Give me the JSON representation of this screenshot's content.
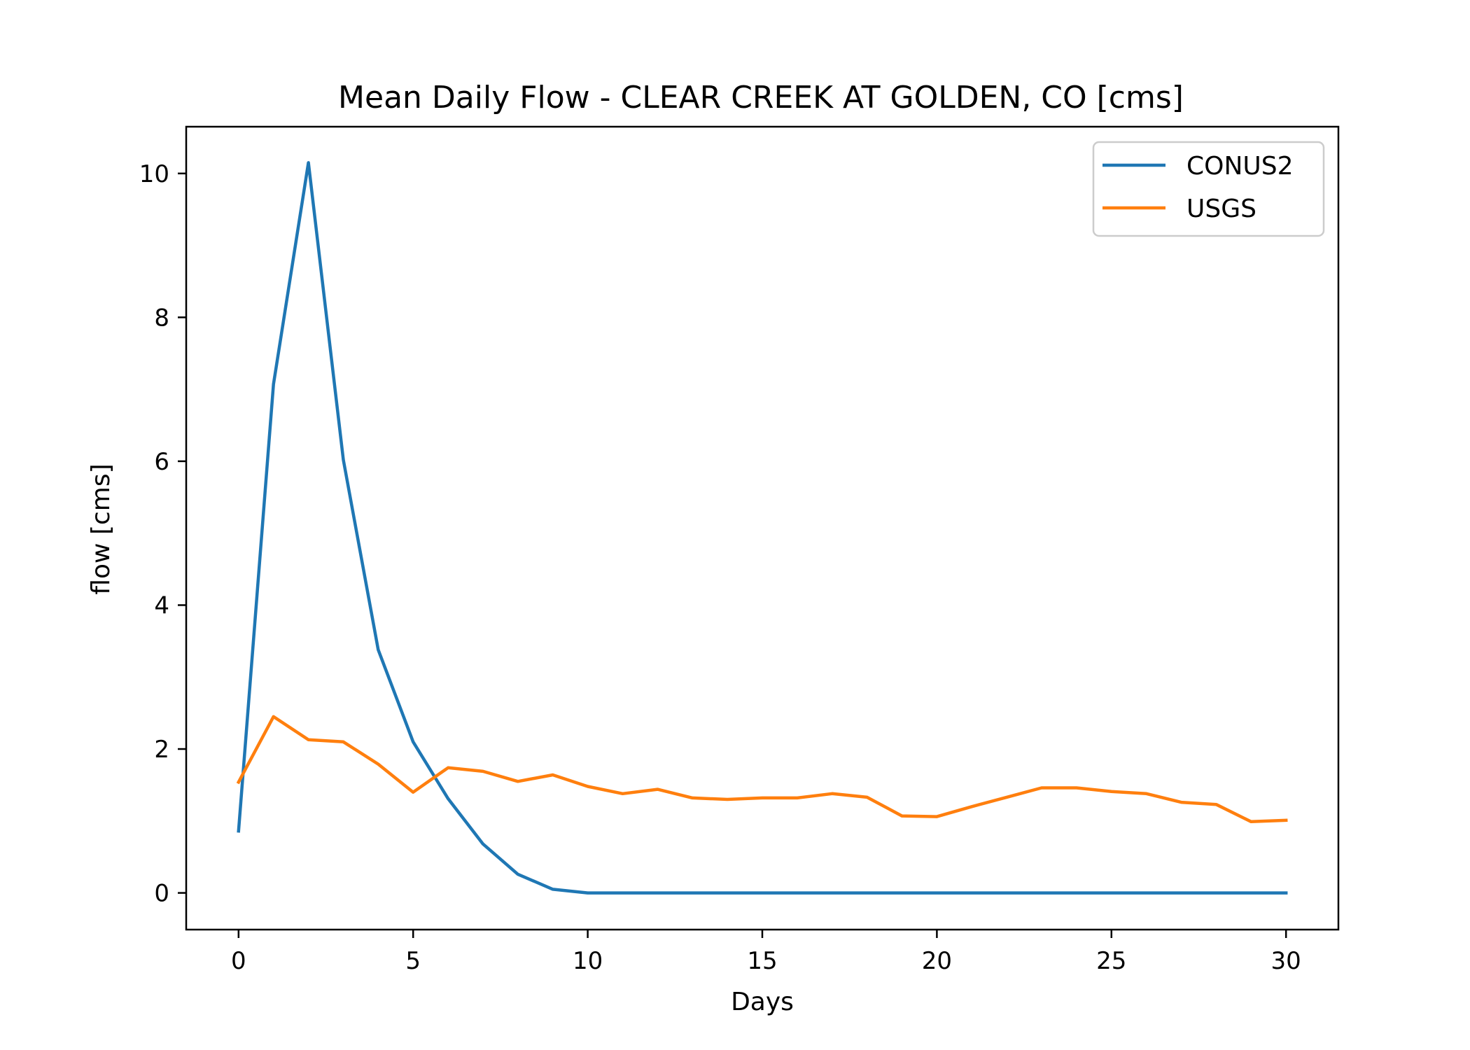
{
  "chart_data": {
    "type": "line",
    "title": "Mean Daily Flow - CLEAR CREEK AT GOLDEN, CO [cms]",
    "xlabel": "Days",
    "ylabel": "flow [cms]",
    "xlim": [
      -1.5,
      31.5
    ],
    "ylim": [
      -0.51,
      10.65
    ],
    "xticks": [
      0,
      5,
      10,
      15,
      20,
      25,
      30
    ],
    "yticks": [
      0,
      2,
      4,
      6,
      8,
      10
    ],
    "grid": false,
    "legend_position": "top-right",
    "x": [
      0,
      1,
      2,
      3,
      4,
      5,
      6,
      7,
      8,
      9,
      10,
      11,
      12,
      13,
      14,
      15,
      16,
      17,
      18,
      19,
      20,
      21,
      22,
      23,
      24,
      25,
      26,
      27,
      28,
      29,
      30
    ],
    "series": [
      {
        "name": "CONUS2",
        "color": "#1f77b4",
        "values": [
          0.86,
          7.07,
          10.15,
          6.02,
          3.38,
          2.1,
          1.31,
          0.68,
          0.26,
          0.05,
          0.0,
          0.0,
          0.0,
          0.0,
          0.0,
          0.0,
          0.0,
          0.0,
          0.0,
          0.0,
          0.0,
          0.0,
          0.0,
          0.0,
          0.0,
          0.0,
          0.0,
          0.0,
          0.0,
          0.0,
          0.0
        ]
      },
      {
        "name": "USGS",
        "color": "#ff7f0e",
        "values": [
          1.54,
          2.45,
          2.13,
          2.1,
          1.79,
          1.4,
          1.74,
          1.69,
          1.55,
          1.64,
          1.48,
          1.38,
          1.44,
          1.32,
          1.3,
          1.32,
          1.32,
          1.38,
          1.33,
          1.07,
          1.06,
          1.2,
          1.33,
          1.46,
          1.46,
          1.41,
          1.38,
          1.26,
          1.23,
          0.99,
          1.01
        ]
      }
    ]
  }
}
